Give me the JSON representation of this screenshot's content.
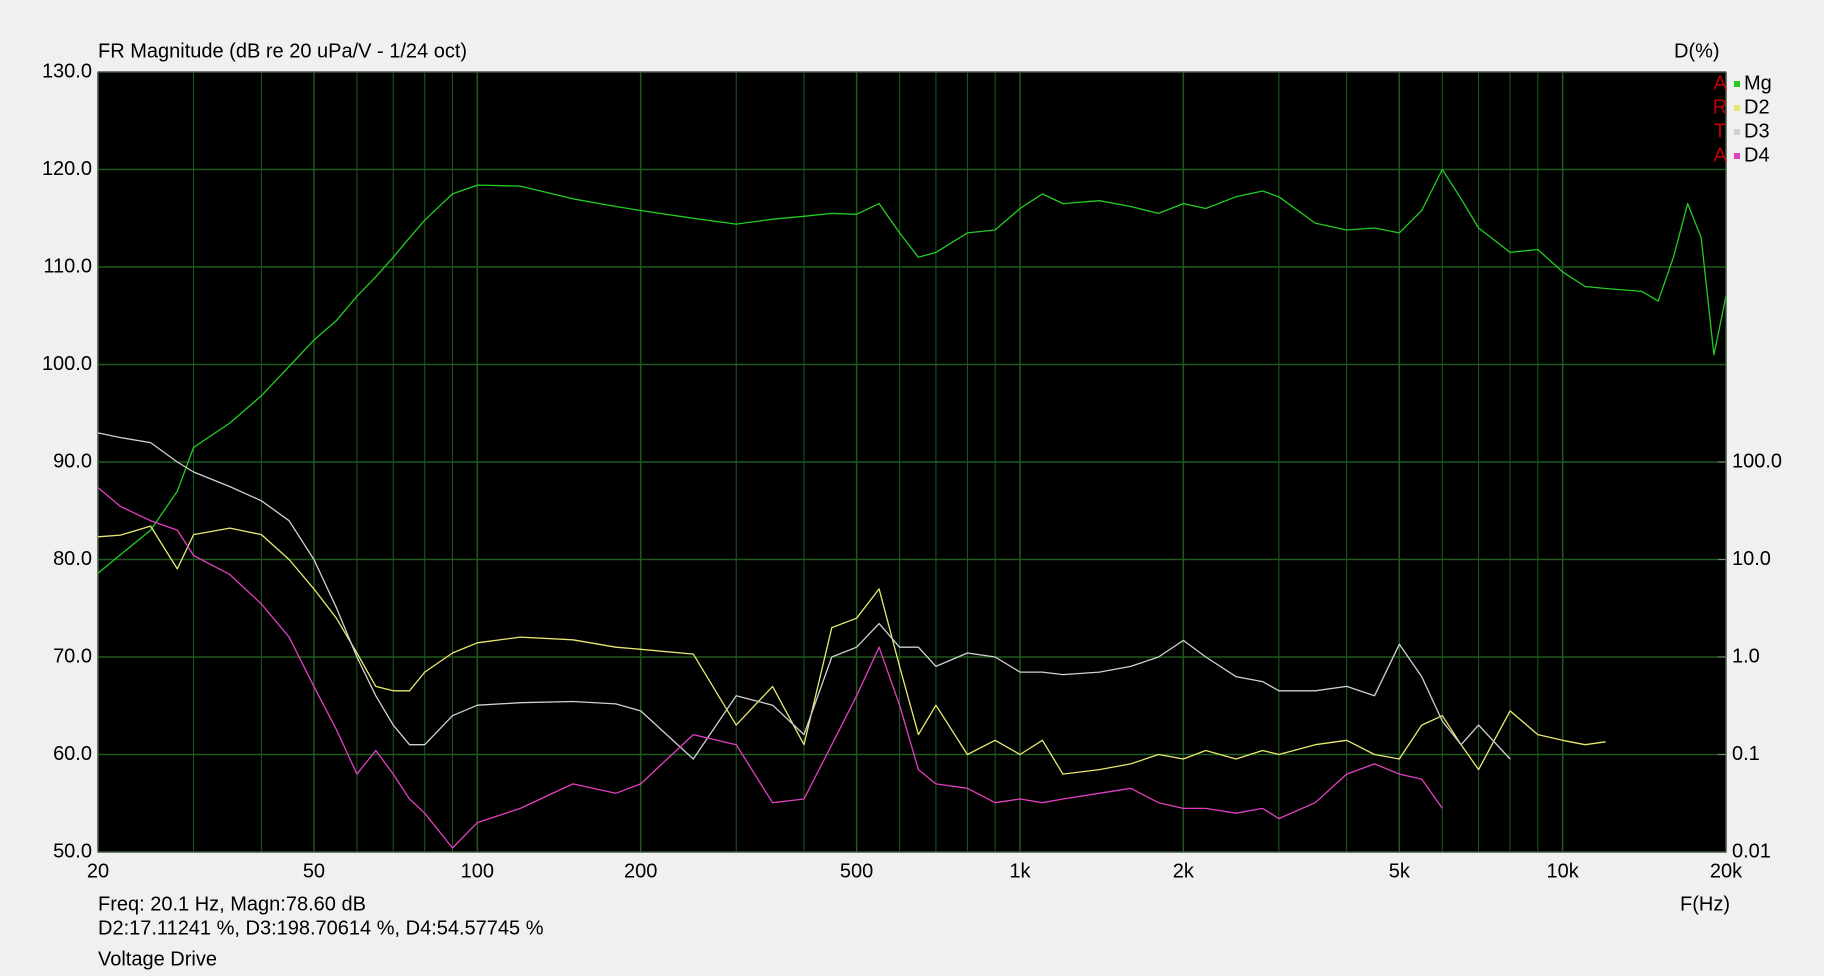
{
  "chart_data": {
    "type": "line",
    "title": "FR Magnitude (dB re 20 uPa/V - 1/24 oct)",
    "y2_title": "D(%)",
    "xlabel": "F(Hz)",
    "logo": [
      "A",
      "R",
      "T",
      "A"
    ],
    "readout": [
      "Freq: 20.1 Hz, Magn:78.60 dB",
      "D2:17.11241 %, D3:198.70614 %, D4:54.57745 %",
      "Voltage Drive"
    ],
    "xscale": "log",
    "y2scale": "log",
    "grid": true,
    "background": "#000000",
    "grid_color": "#1f5a1f",
    "xlim": [
      20,
      20000
    ],
    "xticks": [
      20,
      50,
      100,
      200,
      500,
      {
        "value": 1000,
        "label": "1k"
      },
      {
        "value": 2000,
        "label": "2k"
      },
      {
        "value": 5000,
        "label": "5k"
      },
      {
        "value": 10000,
        "label": "10k"
      },
      {
        "value": 20000,
        "label": "20k"
      }
    ],
    "x_minor_ticks": [
      30,
      40,
      60,
      70,
      80,
      90,
      300,
      400,
      600,
      700,
      800,
      900,
      3000,
      4000,
      6000,
      7000,
      8000,
      9000
    ],
    "ylim": [
      50,
      130
    ],
    "yticks": [
      {
        "value": 50,
        "label": "50.0"
      },
      {
        "value": 60,
        "label": "60.0"
      },
      {
        "value": 70,
        "label": "70.0"
      },
      {
        "value": 80,
        "label": "80.0"
      },
      {
        "value": 90,
        "label": "90.0"
      },
      {
        "value": 100,
        "label": "100.0"
      },
      {
        "value": 110,
        "label": "110.0"
      },
      {
        "value": 120,
        "label": "120.0"
      },
      {
        "value": 130,
        "label": "130.0"
      }
    ],
    "y2lim": [
      0.01,
      1000000
    ],
    "y2ticks": [
      0.01,
      0.1,
      {
        "value": 1,
        "label": "1.0"
      },
      {
        "value": 10,
        "label": "10.0"
      },
      {
        "value": 100,
        "label": "100.0"
      }
    ],
    "x": [
      20,
      22,
      25,
      28,
      30,
      35,
      40,
      45,
      50,
      55,
      60,
      65,
      70,
      75,
      80,
      90,
      100,
      120,
      150,
      180,
      200,
      250,
      300,
      350,
      400,
      450,
      500,
      550,
      600,
      650,
      700,
      800,
      900,
      1000,
      1100,
      1200,
      1400,
      1600,
      1800,
      2000,
      2200,
      2500,
      2800,
      3000,
      3500,
      4000,
      4500,
      5000,
      5500,
      6000,
      6500,
      7000,
      8000,
      9000,
      10000,
      11000,
      12000,
      14000,
      15000,
      16000,
      17000,
      18000,
      19000,
      20000
    ],
    "series": [
      {
        "name": "Mg",
        "color": "#22cc22",
        "values": [
          78.6,
          80.5,
          83,
          87,
          91.5,
          94,
          96.8,
          99.8,
          102.5,
          104.5,
          107,
          109,
          111,
          113,
          114.8,
          117.5,
          118.4,
          118.3,
          117,
          116.2,
          115.8,
          115,
          114.4,
          114.9,
          115.2,
          115.5,
          115.4,
          116.5,
          113.5,
          111,
          111.5,
          113.5,
          113.8,
          116,
          117.5,
          116.5,
          116.8,
          116.2,
          115.5,
          116.5,
          116,
          117.2,
          117.8,
          117.2,
          114.5,
          113.8,
          114,
          113.5,
          115.8,
          120,
          117,
          114,
          111.5,
          111.8,
          109.5,
          108,
          107.8,
          107.5,
          106.5,
          111,
          116.5,
          113,
          101,
          107
        ]
      },
      {
        "name": "D2",
        "color": "#e8e870",
        "axis": "y2",
        "values": [
          17.1,
          17.8,
          22,
          8,
          18,
          21,
          18,
          10,
          5,
          2.5,
          1.1,
          0.5,
          0.45,
          0.45,
          0.7,
          1.1,
          1.4,
          1.6,
          1.5,
          1.26,
          1.2,
          1.07,
          0.2,
          0.5,
          0.126,
          2,
          2.5,
          5,
          0.8,
          0.16,
          0.32,
          0.1,
          0.14,
          0.1,
          0.14,
          0.063,
          0.07,
          0.08,
          0.1,
          0.09,
          0.11,
          0.09,
          0.11,
          0.1,
          0.126,
          0.14,
          0.1,
          0.09,
          0.2,
          0.25,
          0.126,
          0.07,
          0.28,
          0.16,
          0.14,
          0.126,
          0.135,
          null,
          null,
          null,
          null,
          null,
          null,
          null
        ]
      },
      {
        "name": "D3",
        "color": "#d0d0d0",
        "axis": "y2",
        "values": [
          198.7,
          178,
          158,
          100,
          79,
          56,
          40,
          25,
          10,
          3.2,
          1,
          0.4,
          0.2,
          0.126,
          0.126,
          0.25,
          0.32,
          0.34,
          0.35,
          0.33,
          0.28,
          0.09,
          0.4,
          0.32,
          0.16,
          1,
          1.26,
          2.2,
          1.26,
          1.26,
          0.8,
          1.1,
          1,
          0.7,
          0.7,
          0.66,
          0.7,
          0.8,
          1,
          1.48,
          1,
          0.63,
          0.56,
          0.45,
          0.45,
          0.5,
          0.4,
          1.35,
          0.63,
          0.22,
          0.126,
          0.2,
          0.09,
          null,
          null,
          null,
          null,
          null,
          null,
          null,
          null,
          null,
          null,
          null
        ]
      },
      {
        "name": "D4",
        "color": "#e040c0",
        "axis": "y2",
        "values": [
          54.6,
          35,
          25,
          20,
          11,
          7,
          3.5,
          1.6,
          0.5,
          0.18,
          0.063,
          0.11,
          0.063,
          0.035,
          0.025,
          0.011,
          0.02,
          0.028,
          0.05,
          0.04,
          0.05,
          0.16,
          0.126,
          0.032,
          0.035,
          0.126,
          0.4,
          1.26,
          0.32,
          0.07,
          0.05,
          0.045,
          0.032,
          0.035,
          0.032,
          0.035,
          0.04,
          0.045,
          0.032,
          0.028,
          0.028,
          0.025,
          0.028,
          0.022,
          0.032,
          0.063,
          0.08,
          0.063,
          0.056,
          0.028,
          null,
          null,
          null,
          null,
          null,
          null,
          null,
          null,
          null,
          null,
          null,
          null,
          null,
          null
        ]
      }
    ]
  }
}
